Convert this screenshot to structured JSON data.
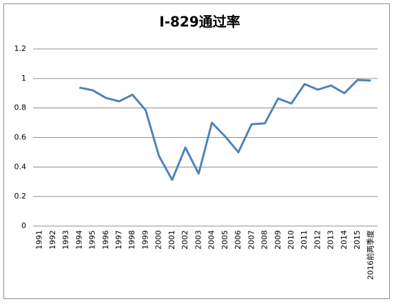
{
  "chart_data": {
    "type": "line",
    "title": "I-829通过率",
    "categories": [
      "1991",
      "1992",
      "1993",
      "1994",
      "1995",
      "1996",
      "1997",
      "1998",
      "1999",
      "2000",
      "2001",
      "2002",
      "2003",
      "2004",
      "2005",
      "2006",
      "2007",
      "2008",
      "2009",
      "2010",
      "2011",
      "2012",
      "2013",
      "2014",
      "2015",
      "2016前两季度"
    ],
    "values": [
      null,
      null,
      null,
      0.938,
      0.92,
      0.868,
      0.845,
      0.89,
      0.785,
      0.476,
      0.313,
      0.532,
      0.355,
      0.7,
      0.607,
      0.5,
      0.69,
      0.696,
      0.864,
      0.83,
      0.962,
      0.924,
      0.952,
      0.9,
      0.99,
      0.985
    ],
    "color": "#4f81bd",
    "ylim": [
      0,
      1.2
    ],
    "yticks": [
      0,
      0.2,
      0.4,
      0.6,
      0.8,
      1,
      1.2
    ],
    "grid": true
  }
}
